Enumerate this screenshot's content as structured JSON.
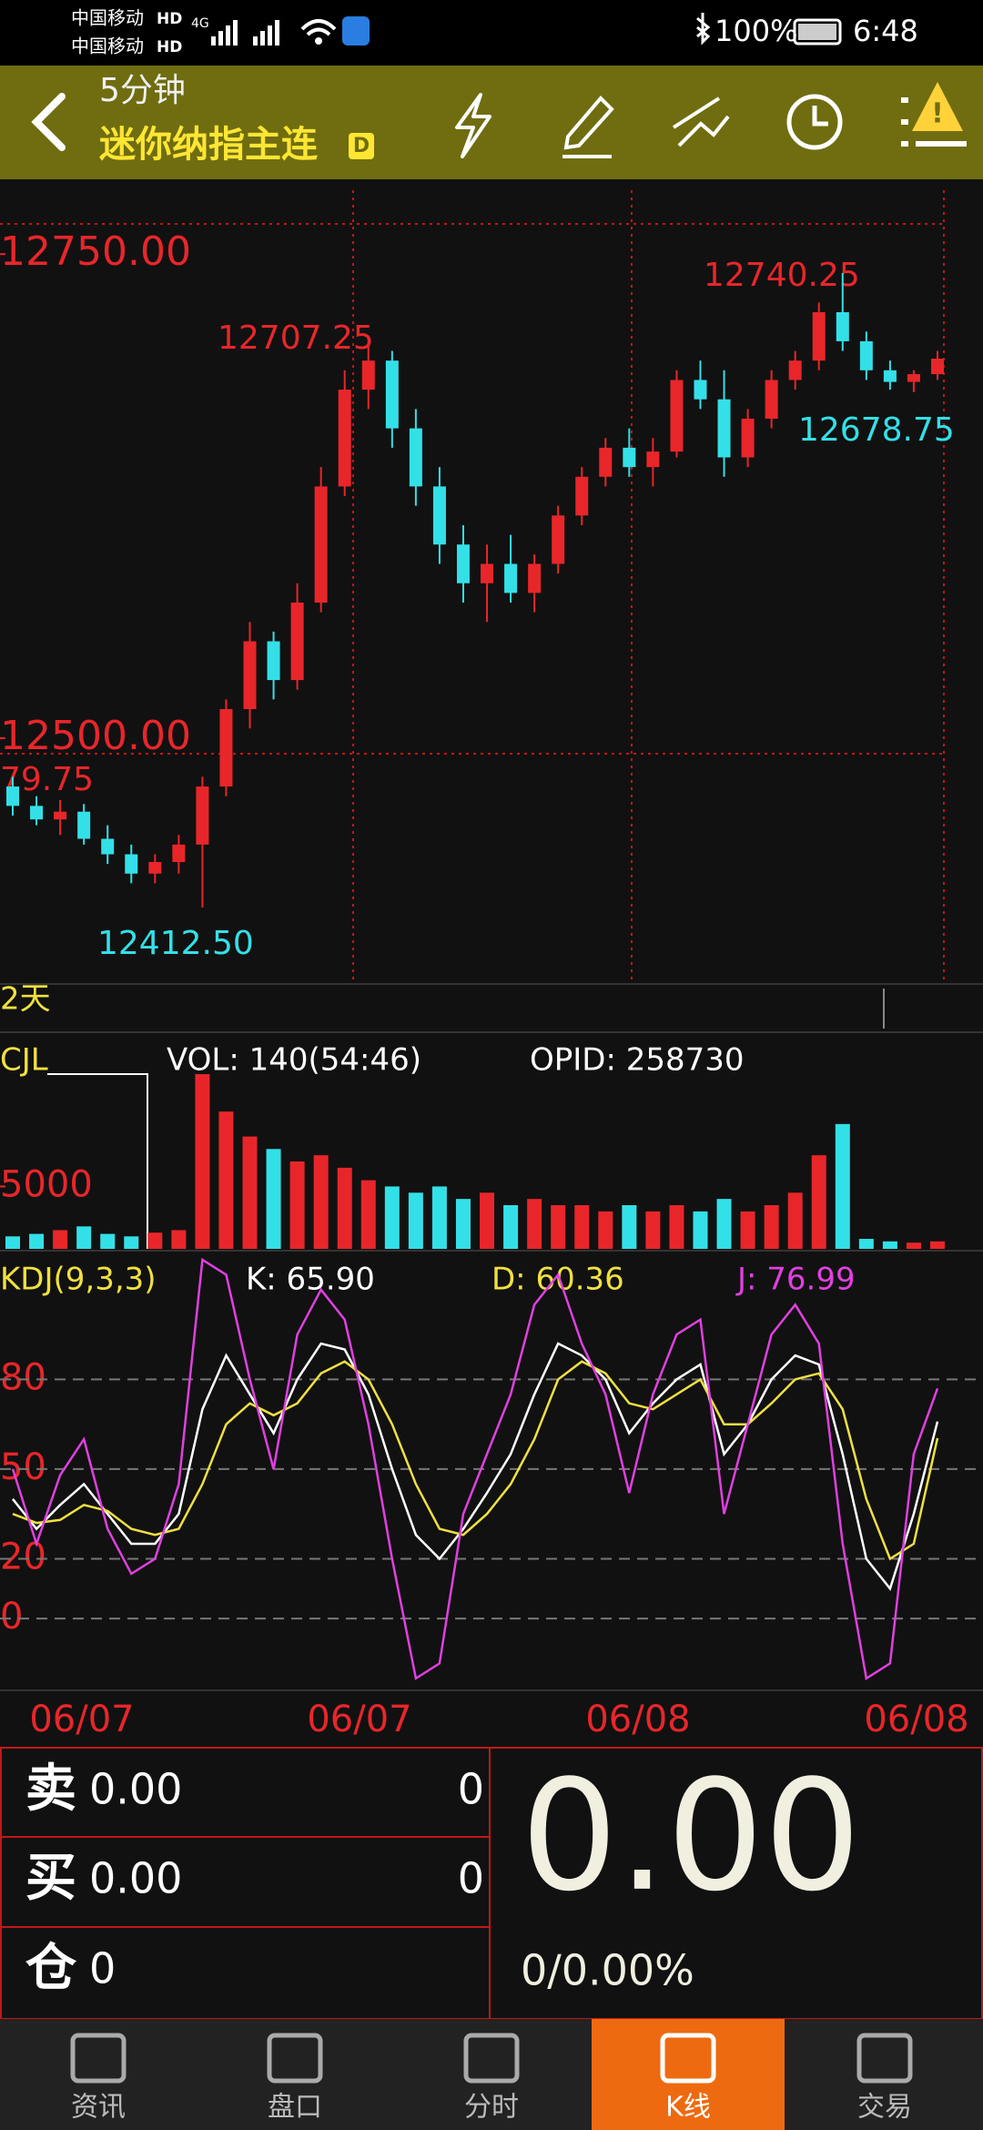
{
  "status_bar": {
    "carrier_1": "中国移动",
    "carrier_2": "中国移动",
    "hd": "HD",
    "net": "4G",
    "battery": "100%",
    "time": "6:48"
  },
  "header": {
    "period": "5分钟",
    "name": "迷你纳指主连",
    "badge": "D"
  },
  "annotations": [
    {
      "text": "12750.00",
      "color": "#e8262a"
    },
    {
      "text": "12500.00",
      "color": "#e8262a"
    },
    {
      "text": "79.75",
      "color": "#e8262a"
    },
    {
      "text": "12707.25",
      "color": "#e8262a"
    },
    {
      "text": "12740.25",
      "color": "#e8262a"
    },
    {
      "text": "12678.75",
      "color": "#33e0e8"
    },
    {
      "text": "12412.50",
      "color": "#33e0e8"
    },
    {
      "text": "2天",
      "color": "#f0e040"
    }
  ],
  "chart_data": [
    {
      "type": "candlestick",
      "open": [
        12475,
        12465,
        12458,
        12462,
        12448,
        12440,
        12430,
        12436,
        12445,
        12475,
        12515,
        12550,
        12530,
        12570,
        12630,
        12680,
        12695,
        12660,
        12630,
        12600,
        12580,
        12590,
        12575,
        12590,
        12615,
        12635,
        12650,
        12640,
        12648,
        12685,
        12675,
        12645,
        12665,
        12685,
        12695,
        12720,
        12705,
        12690,
        12684,
        12688
      ],
      "high": [
        12480,
        12470,
        12468,
        12466,
        12455,
        12445,
        12440,
        12450,
        12480,
        12520,
        12560,
        12555,
        12580,
        12640,
        12690,
        12707.25,
        12700,
        12670,
        12640,
        12610,
        12600,
        12605,
        12595,
        12620,
        12640,
        12655,
        12660,
        12655,
        12690,
        12695,
        12690,
        12670,
        12690,
        12700,
        12725,
        12740.25,
        12710,
        12695,
        12690,
        12700
      ],
      "low": [
        12460,
        12455,
        12450,
        12445,
        12435,
        12425,
        12425,
        12430,
        12412.5,
        12470,
        12505,
        12520,
        12525,
        12565,
        12625,
        12670,
        12650,
        12620,
        12590,
        12570,
        12560,
        12570,
        12565,
        12585,
        12610,
        12630,
        12635,
        12630,
        12645,
        12670,
        12635,
        12640,
        12660,
        12680,
        12690,
        12700,
        12685,
        12680,
        12678.75,
        12685
      ],
      "close": [
        12465,
        12458,
        12462,
        12448,
        12440,
        12430,
        12436,
        12445,
        12475,
        12515,
        12550,
        12530,
        12570,
        12630,
        12680,
        12695,
        12660,
        12630,
        12600,
        12580,
        12590,
        12575,
        12590,
        12615,
        12635,
        12650,
        12640,
        12648,
        12685,
        12675,
        12645,
        12665,
        12685,
        12695,
        12720,
        12705,
        12690,
        12684,
        12688,
        12696
      ],
      "up_color": "#e8262a",
      "down_color": "#33e0e8",
      "ylim": [
        12373,
        12783
      ],
      "yticks": [
        {
          "value": 12750,
          "label": "12750.00"
        },
        {
          "value": 12500,
          "label": "12500.00"
        }
      ]
    },
    {
      "type": "bar",
      "label": "CJL",
      "vol": "VOL: 140(54:46)",
      "opid": "OPID: 258730",
      "values": [
        1000,
        1200,
        1500,
        1800,
        1200,
        1000,
        1300,
        1500,
        14000,
        11000,
        9000,
        8000,
        7000,
        7500,
        6500,
        5500,
        5000,
        4500,
        5000,
        4000,
        4500,
        3500,
        4000,
        3500,
        3500,
        3000,
        3500,
        3000,
        3500,
        3000,
        4000,
        3000,
        3500,
        4500,
        7500,
        10000,
        800,
        600,
        500,
        600
      ],
      "ylim": [
        0,
        14000
      ],
      "yticks": [
        5000
      ],
      "tick_color": "#e8262a"
    },
    {
      "type": "line",
      "label": "KDJ(9,3,3)",
      "k": "K: 65.90",
      "d": "D: 60.36",
      "j": "J: 76.99",
      "series": [
        {
          "name": "K",
          "color": "#ffffff",
          "values": [
            40,
            30,
            38,
            45,
            35,
            25,
            25,
            35,
            70,
            88,
            75,
            62,
            80,
            92,
            90,
            75,
            50,
            28,
            20,
            30,
            42,
            55,
            75,
            92,
            88,
            80,
            62,
            72,
            80,
            85,
            55,
            65,
            80,
            88,
            85,
            55,
            20,
            10,
            35,
            65.9
          ]
        },
        {
          "name": "D",
          "color": "#f0e040",
          "values": [
            35,
            32,
            33,
            38,
            36,
            30,
            28,
            30,
            45,
            65,
            72,
            68,
            72,
            82,
            86,
            80,
            65,
            45,
            30,
            28,
            35,
            45,
            60,
            80,
            86,
            82,
            72,
            70,
            75,
            80,
            65,
            65,
            72,
            80,
            82,
            70,
            40,
            20,
            25,
            60.36
          ]
        },
        {
          "name": "J",
          "color": "#e040e0",
          "values": [
            50,
            25,
            48,
            60,
            30,
            15,
            20,
            45,
            120,
            115,
            80,
            50,
            95,
            110,
            100,
            65,
            20,
            -20,
            -15,
            35,
            55,
            75,
            105,
            115,
            92,
            75,
            42,
            75,
            95,
            100,
            35,
            65,
            95,
            105,
            92,
            25,
            -20,
            -15,
            55,
            76.99
          ]
        }
      ],
      "ylim": [
        -24,
        120
      ],
      "yticks": [
        80,
        50,
        20,
        0
      ],
      "grid": true
    },
    {
      "type": "axis",
      "x_labels": [
        "06/07",
        "06/07",
        "06/08",
        "06/08"
      ]
    }
  ],
  "quote": {
    "sell_label": "卖",
    "sell_price": "0.00",
    "sell_qty": "0",
    "buy_label": "买",
    "buy_price": "0.00",
    "buy_qty": "0",
    "pos_label": "仓",
    "pos": "0",
    "last": "0.00",
    "change": "0/0.00%"
  },
  "tabs": {
    "items": [
      "资讯",
      "盘口",
      "分时",
      "K线",
      "交易"
    ],
    "active": 3
  }
}
